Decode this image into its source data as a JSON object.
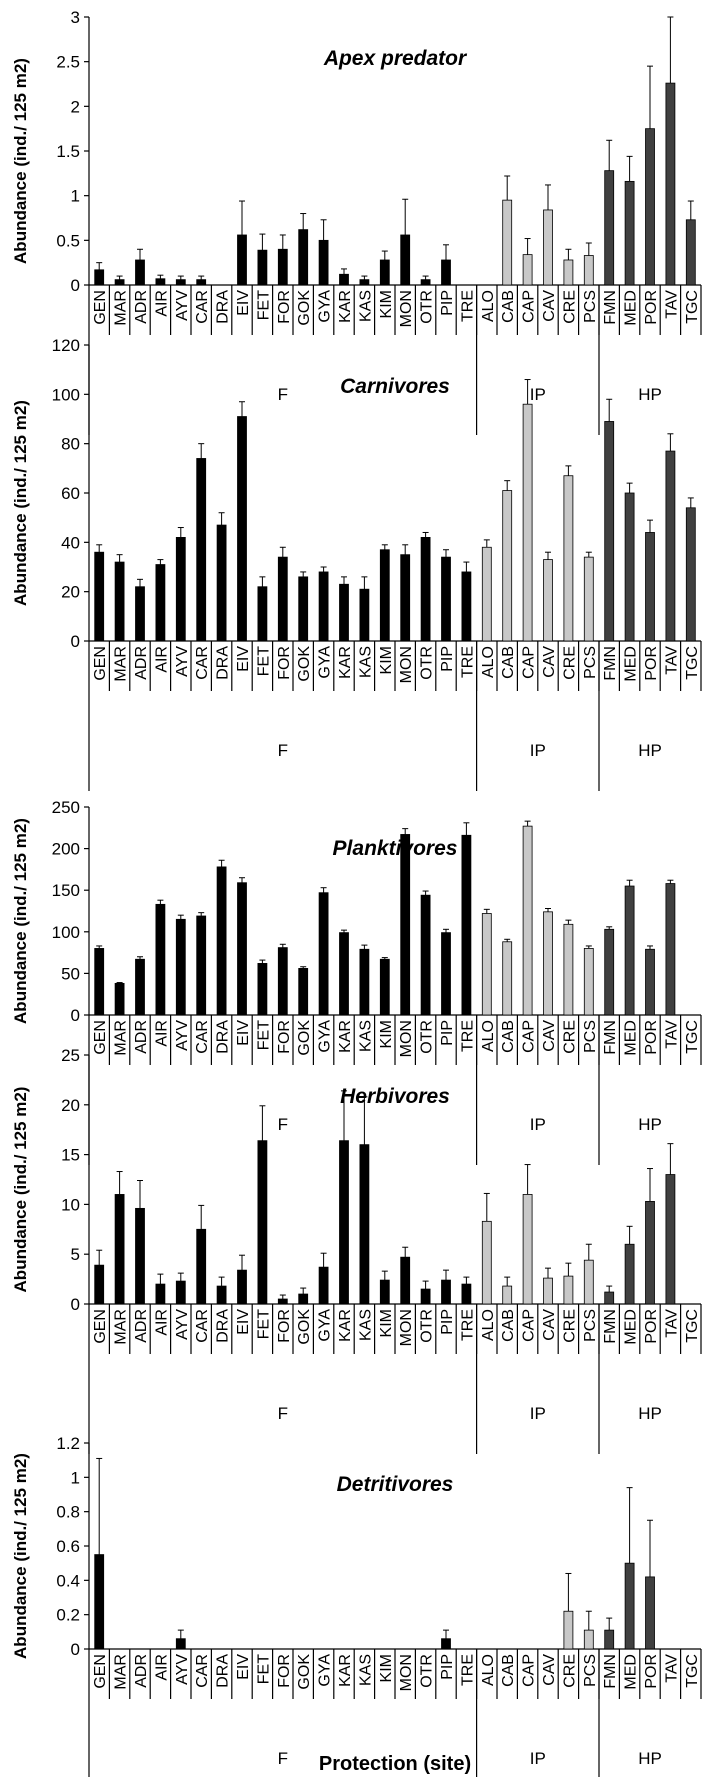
{
  "x_axis_title": "Protection (site)",
  "chart_data": [
    {
      "type": "bar",
      "title": "Apex predator",
      "ylabel": "Abundance (ind./ 125 m2)",
      "ylim": [
        0,
        3
      ],
      "yticks": [
        "0",
        "0.5",
        "1",
        "1.5",
        "2",
        "2.5",
        "3"
      ],
      "categories": [
        "GEN",
        "MAR",
        "ADR",
        "AIR",
        "AYV",
        "CAR",
        "DRA",
        "EIV",
        "FET",
        "FOR",
        "GOK",
        "GYA",
        "KAR",
        "KAS",
        "KIM",
        "MON",
        "OTR",
        "PIP",
        "TRE",
        "ALO",
        "CAB",
        "CAP",
        "CAV",
        "CRE",
        "PCS",
        "FMN",
        "MED",
        "POR",
        "TAV",
        "TGC"
      ],
      "values": [
        0.17,
        0.06,
        0.28,
        0.07,
        0.06,
        0.06,
        0,
        0.56,
        0.39,
        0.4,
        0.62,
        0.5,
        0.12,
        0.06,
        0.28,
        0.56,
        0.06,
        0.28,
        0,
        0,
        0.95,
        0.34,
        0.84,
        0.28,
        0.33,
        1.28,
        1.16,
        1.75,
        2.26,
        0.73
      ],
      "errors": [
        0.08,
        0.04,
        0.12,
        0.04,
        0.04,
        0.04,
        0,
        0.38,
        0.18,
        0.16,
        0.18,
        0.23,
        0.06,
        0.04,
        0.1,
        0.4,
        0.04,
        0.17,
        0,
        0,
        0.27,
        0.18,
        0.28,
        0.12,
        0.14,
        0.34,
        0.28,
        0.7,
        1.48,
        0.21
      ]
    },
    {
      "type": "bar",
      "title": "Carnivores",
      "ylabel": "Abundance (ind./ 125 m2)",
      "ylim": [
        0,
        120
      ],
      "yticks": [
        "0",
        "20",
        "40",
        "60",
        "80",
        "100",
        "120"
      ],
      "categories": [
        "GEN",
        "MAR",
        "ADR",
        "AIR",
        "AYV",
        "CAR",
        "DRA",
        "EIV",
        "FET",
        "FOR",
        "GOK",
        "GYA",
        "KAR",
        "KAS",
        "KIM",
        "MON",
        "OTR",
        "PIP",
        "TRE",
        "ALO",
        "CAB",
        "CAP",
        "CAV",
        "CRE",
        "PCS",
        "FMN",
        "MED",
        "POR",
        "TAV",
        "TGC"
      ],
      "values": [
        36,
        32,
        22,
        31,
        42,
        74,
        47,
        91,
        22,
        34,
        26,
        28,
        23,
        21,
        37,
        35,
        42,
        34,
        28,
        38,
        61,
        96,
        33,
        67,
        34,
        89,
        60,
        44,
        77,
        54
      ],
      "errors": [
        3,
        3,
        3,
        2,
        4,
        6,
        5,
        6,
        4,
        4,
        2,
        2,
        3,
        5,
        2,
        4,
        2,
        3,
        4,
        3,
        4,
        10,
        3,
        4,
        2,
        9,
        4,
        5,
        7,
        4
      ]
    },
    {
      "type": "bar",
      "title": "Planktivores",
      "ylabel": "Abundance (ind./ 125 m2)",
      "ylim": [
        0,
        250
      ],
      "yticks": [
        "0",
        "50",
        "100",
        "150",
        "200",
        "250"
      ],
      "categories": [
        "GEN",
        "MAR",
        "ADR",
        "AIR",
        "AYV",
        "CAR",
        "DRA",
        "EIV",
        "FET",
        "FOR",
        "GOK",
        "GYA",
        "KAR",
        "KAS",
        "KIM",
        "MON",
        "OTR",
        "PIP",
        "TRE",
        "ALO",
        "CAB",
        "CAP",
        "CAV",
        "CRE",
        "PCS",
        "FMN",
        "MED",
        "POR",
        "TAV",
        "TGC"
      ],
      "values": [
        80,
        38,
        67,
        133,
        115,
        119,
        178,
        159,
        62,
        81,
        56,
        147,
        99,
        79,
        67,
        217,
        144,
        99,
        216,
        122,
        88,
        227,
        124,
        109,
        80,
        103,
        155,
        79,
        158,
        0
      ],
      "errors": [
        3,
        1,
        3,
        5,
        5,
        4,
        8,
        6,
        4,
        4,
        2,
        6,
        3,
        5,
        2,
        7,
        5,
        4,
        15,
        5,
        3,
        6,
        4,
        5,
        3,
        3,
        7,
        4,
        4,
        0
      ]
    },
    {
      "type": "bar",
      "title": "Herbivores",
      "ylabel": "Abundance (ind./ 125 m2)",
      "ylim": [
        0,
        25
      ],
      "yticks": [
        "0",
        "5",
        "10",
        "15",
        "20",
        "25"
      ],
      "categories": [
        "GEN",
        "MAR",
        "ADR",
        "AIR",
        "AYV",
        "CAR",
        "DRA",
        "EIV",
        "FET",
        "FOR",
        "GOK",
        "GYA",
        "KAR",
        "KAS",
        "KIM",
        "MON",
        "OTR",
        "PIP",
        "TRE",
        "ALO",
        "CAB",
        "CAP",
        "CAV",
        "CRE",
        "PCS",
        "FMN",
        "MED",
        "POR",
        "TAV",
        "TGC"
      ],
      "values": [
        3.9,
        11.0,
        9.6,
        2.0,
        2.3,
        7.5,
        1.8,
        3.4,
        16.4,
        0.5,
        1.0,
        3.7,
        16.4,
        16.0,
        2.4,
        4.7,
        1.5,
        2.4,
        2.0,
        8.3,
        1.8,
        11.0,
        2.6,
        2.8,
        4.4,
        1.2,
        6.0,
        10.3,
        13.0,
        0
      ],
      "errors": [
        1.5,
        2.3,
        2.8,
        1.0,
        0.8,
        2.4,
        0.9,
        1.5,
        3.5,
        0.4,
        0.6,
        1.4,
        5.0,
        4.8,
        0.9,
        1.0,
        0.8,
        1.0,
        0.7,
        2.8,
        0.9,
        3.0,
        1.0,
        1.3,
        1.6,
        0.6,
        1.8,
        3.3,
        3.1,
        0
      ]
    },
    {
      "type": "bar",
      "title": "Detritivores",
      "ylabel": "Abundance (ind./ 125 m2)",
      "ylim": [
        0,
        1.2
      ],
      "yticks": [
        "0",
        "0.2",
        "0.4",
        "0.6",
        "0.8",
        "1",
        "1.2"
      ],
      "categories": [
        "GEN",
        "MAR",
        "ADR",
        "AIR",
        "AYV",
        "CAR",
        "DRA",
        "EIV",
        "FET",
        "FOR",
        "GOK",
        "GYA",
        "KAR",
        "KAS",
        "KIM",
        "MON",
        "OTR",
        "PIP",
        "TRE",
        "ALO",
        "CAB",
        "CAP",
        "CAV",
        "CRE",
        "PCS",
        "FMN",
        "MED",
        "POR",
        "TAV",
        "TGC"
      ],
      "values": [
        0.55,
        0,
        0,
        0,
        0.06,
        0,
        0,
        0,
        0,
        0,
        0,
        0,
        0,
        0,
        0,
        0,
        0,
        0.06,
        0,
        0,
        0,
        0,
        0,
        0.22,
        0.11,
        0.11,
        0.5,
        0.42,
        0,
        0
      ],
      "errors": [
        0.56,
        0,
        0,
        0,
        0.05,
        0,
        0,
        0,
        0,
        0,
        0,
        0,
        0,
        0,
        0,
        0,
        0,
        0.05,
        0,
        0,
        0,
        0,
        0,
        0.22,
        0.11,
        0.07,
        0.44,
        0.33,
        0,
        0
      ]
    }
  ],
  "groups": [
    {
      "label": "F",
      "count": 19,
      "color": "#000000"
    },
    {
      "label": "IP",
      "count": 6,
      "color": "#c8c8c8"
    },
    {
      "label": "HP",
      "count": 5,
      "color": "#404040"
    }
  ]
}
